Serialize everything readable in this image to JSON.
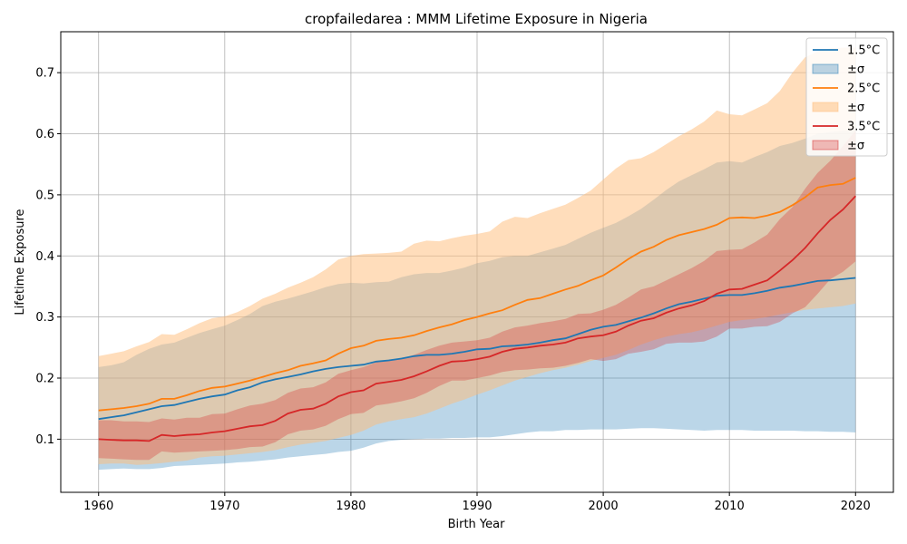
{
  "chart_data": {
    "type": "line",
    "title": "cropfailedarea : MMM Lifetime Exposure in Nigeria",
    "xlabel": "Birth Year",
    "ylabel": "Lifetime Exposure",
    "xlim": [
      1957,
      2023
    ],
    "ylim": [
      0.013,
      0.767
    ],
    "xticks": [
      1960,
      1970,
      1980,
      1990,
      2000,
      2010,
      2020
    ],
    "yticks": [
      0.1,
      0.2,
      0.3,
      0.4,
      0.5,
      0.6,
      0.7
    ],
    "grid": true,
    "legend_position": "top-right",
    "x_start": 1960,
    "series": [
      {
        "name": "1.5°C",
        "band_label": "±σ",
        "color": "#1f77b4",
        "band_color": "#1f77b4",
        "values": [
          0.133,
          0.136,
          0.139,
          0.144,
          0.149,
          0.154,
          0.156,
          0.161,
          0.166,
          0.17,
          0.173,
          0.18,
          0.185,
          0.193,
          0.198,
          0.202,
          0.206,
          0.211,
          0.215,
          0.218,
          0.22,
          0.222,
          0.227,
          0.229,
          0.232,
          0.236,
          0.238,
          0.238,
          0.24,
          0.243,
          0.247,
          0.248,
          0.252,
          0.253,
          0.255,
          0.258,
          0.262,
          0.265,
          0.272,
          0.279,
          0.284,
          0.287,
          0.293,
          0.299,
          0.306,
          0.314,
          0.321,
          0.325,
          0.33,
          0.335,
          0.336,
          0.336,
          0.339,
          0.343,
          0.348,
          0.351,
          0.355,
          0.359,
          0.36,
          0.362,
          0.364
        ],
        "upper": [
          0.218,
          0.221,
          0.226,
          0.238,
          0.248,
          0.255,
          0.258,
          0.266,
          0.274,
          0.28,
          0.286,
          0.295,
          0.305,
          0.318,
          0.325,
          0.33,
          0.336,
          0.342,
          0.349,
          0.354,
          0.356,
          0.355,
          0.357,
          0.358,
          0.365,
          0.37,
          0.372,
          0.372,
          0.376,
          0.381,
          0.388,
          0.392,
          0.398,
          0.4,
          0.4,
          0.406,
          0.412,
          0.418,
          0.428,
          0.438,
          0.446,
          0.454,
          0.465,
          0.477,
          0.492,
          0.508,
          0.522,
          0.532,
          0.542,
          0.553,
          0.555,
          0.553,
          0.562,
          0.57,
          0.58,
          0.585,
          0.592,
          0.6,
          0.603,
          0.605,
          0.606
        ],
        "lower": [
          0.05,
          0.051,
          0.052,
          0.051,
          0.051,
          0.053,
          0.056,
          0.057,
          0.058,
          0.059,
          0.06,
          0.062,
          0.063,
          0.065,
          0.067,
          0.07,
          0.072,
          0.074,
          0.076,
          0.079,
          0.081,
          0.086,
          0.093,
          0.097,
          0.099,
          0.1,
          0.101,
          0.101,
          0.102,
          0.102,
          0.103,
          0.103,
          0.105,
          0.108,
          0.111,
          0.113,
          0.113,
          0.115,
          0.115,
          0.116,
          0.116,
          0.116,
          0.117,
          0.118,
          0.118,
          0.117,
          0.116,
          0.115,
          0.114,
          0.115,
          0.115,
          0.115,
          0.114,
          0.114,
          0.114,
          0.114,
          0.113,
          0.113,
          0.112,
          0.112,
          0.111
        ]
      },
      {
        "name": "2.5°C",
        "band_label": "±σ",
        "color": "#ff7f0e",
        "band_color": "#ffbb78",
        "values": [
          0.147,
          0.149,
          0.151,
          0.154,
          0.158,
          0.166,
          0.166,
          0.172,
          0.179,
          0.184,
          0.186,
          0.191,
          0.196,
          0.202,
          0.208,
          0.213,
          0.22,
          0.224,
          0.229,
          0.24,
          0.249,
          0.253,
          0.261,
          0.264,
          0.266,
          0.27,
          0.277,
          0.283,
          0.288,
          0.295,
          0.3,
          0.306,
          0.311,
          0.32,
          0.328,
          0.331,
          0.338,
          0.345,
          0.351,
          0.36,
          0.368,
          0.381,
          0.395,
          0.407,
          0.415,
          0.426,
          0.434,
          0.439,
          0.444,
          0.451,
          0.462,
          0.463,
          0.462,
          0.466,
          0.472,
          0.483,
          0.496,
          0.512,
          0.516,
          0.518,
          0.528
        ],
        "upper": [
          0.236,
          0.24,
          0.244,
          0.252,
          0.259,
          0.272,
          0.271,
          0.28,
          0.29,
          0.298,
          0.301,
          0.308,
          0.318,
          0.33,
          0.338,
          0.348,
          0.356,
          0.365,
          0.378,
          0.394,
          0.4,
          0.403,
          0.404,
          0.405,
          0.407,
          0.42,
          0.425,
          0.424,
          0.429,
          0.433,
          0.436,
          0.44,
          0.456,
          0.464,
          0.462,
          0.47,
          0.477,
          0.484,
          0.495,
          0.507,
          0.525,
          0.543,
          0.557,
          0.56,
          0.57,
          0.583,
          0.596,
          0.607,
          0.62,
          0.638,
          0.632,
          0.63,
          0.64,
          0.65,
          0.67,
          0.7,
          0.725,
          0.735,
          0.74,
          0.741,
          0.741
        ],
        "lower": [
          0.059,
          0.06,
          0.06,
          0.058,
          0.059,
          0.061,
          0.063,
          0.065,
          0.07,
          0.072,
          0.073,
          0.075,
          0.077,
          0.079,
          0.082,
          0.087,
          0.091,
          0.094,
          0.097,
          0.102,
          0.107,
          0.114,
          0.124,
          0.129,
          0.133,
          0.136,
          0.142,
          0.15,
          0.158,
          0.165,
          0.173,
          0.18,
          0.188,
          0.196,
          0.202,
          0.208,
          0.213,
          0.217,
          0.222,
          0.228,
          0.233,
          0.238,
          0.246,
          0.255,
          0.262,
          0.268,
          0.272,
          0.275,
          0.28,
          0.286,
          0.292,
          0.295,
          0.297,
          0.3,
          0.304,
          0.308,
          0.312,
          0.314,
          0.316,
          0.318,
          0.322
        ]
      },
      {
        "name": "3.5°C",
        "band_label": "±σ",
        "color": "#d62728",
        "band_color": "#d62728",
        "values": [
          0.1,
          0.099,
          0.098,
          0.098,
          0.097,
          0.107,
          0.105,
          0.107,
          0.108,
          0.111,
          0.113,
          0.117,
          0.121,
          0.123,
          0.13,
          0.142,
          0.148,
          0.15,
          0.158,
          0.17,
          0.177,
          0.18,
          0.191,
          0.194,
          0.197,
          0.203,
          0.211,
          0.22,
          0.227,
          0.228,
          0.231,
          0.235,
          0.243,
          0.248,
          0.25,
          0.253,
          0.255,
          0.258,
          0.265,
          0.268,
          0.27,
          0.276,
          0.286,
          0.294,
          0.298,
          0.307,
          0.314,
          0.319,
          0.326,
          0.338,
          0.345,
          0.346,
          0.353,
          0.36,
          0.376,
          0.393,
          0.413,
          0.437,
          0.459,
          0.476,
          0.498
        ],
        "upper": [
          0.131,
          0.131,
          0.129,
          0.129,
          0.128,
          0.134,
          0.132,
          0.135,
          0.135,
          0.141,
          0.142,
          0.149,
          0.155,
          0.158,
          0.164,
          0.176,
          0.183,
          0.185,
          0.193,
          0.207,
          0.213,
          0.218,
          0.226,
          0.23,
          0.232,
          0.238,
          0.246,
          0.253,
          0.258,
          0.26,
          0.262,
          0.266,
          0.276,
          0.283,
          0.286,
          0.29,
          0.293,
          0.297,
          0.305,
          0.306,
          0.312,
          0.32,
          0.332,
          0.345,
          0.35,
          0.36,
          0.37,
          0.38,
          0.392,
          0.408,
          0.41,
          0.411,
          0.422,
          0.435,
          0.46,
          0.48,
          0.51,
          0.536,
          0.556,
          0.58,
          0.605
        ],
        "lower": [
          0.069,
          0.068,
          0.067,
          0.066,
          0.066,
          0.08,
          0.078,
          0.079,
          0.08,
          0.081,
          0.082,
          0.084,
          0.087,
          0.088,
          0.095,
          0.108,
          0.114,
          0.116,
          0.122,
          0.133,
          0.141,
          0.143,
          0.155,
          0.158,
          0.162,
          0.167,
          0.176,
          0.187,
          0.196,
          0.196,
          0.2,
          0.204,
          0.21,
          0.213,
          0.214,
          0.216,
          0.217,
          0.22,
          0.225,
          0.231,
          0.228,
          0.231,
          0.24,
          0.243,
          0.247,
          0.256,
          0.258,
          0.258,
          0.26,
          0.268,
          0.281,
          0.281,
          0.284,
          0.285,
          0.292,
          0.306,
          0.316,
          0.338,
          0.362,
          0.374,
          0.391
        ]
      }
    ]
  }
}
